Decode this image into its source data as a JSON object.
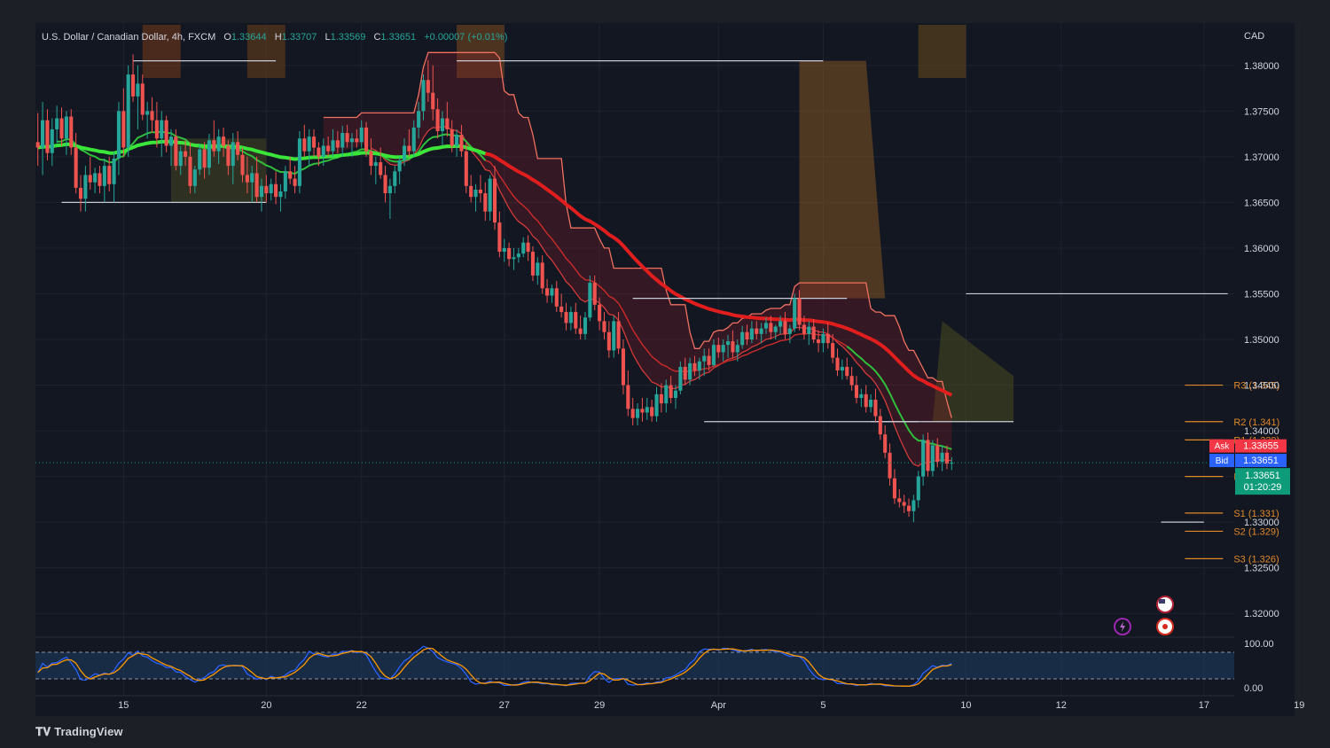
{
  "header": {
    "symbol": "U.S. Dollar / Canadian Dollar, 4h, FXCM",
    "o_label": "O",
    "o_value": "1.33644",
    "h_label": "H",
    "h_value": "1.33707",
    "l_label": "L",
    "l_value": "1.33569",
    "c_label": "C",
    "c_value": "1.33651",
    "change": "+0.00007 (+0.01%)"
  },
  "currency": "CAD",
  "brand": "TradingView",
  "colors": {
    "background": "#1c1f26",
    "up": "#26a69a",
    "down": "#ef5350",
    "ma_green": "#39e639",
    "ma_red": "#e01e1e",
    "pivot": "#e0882a",
    "ask": "#f23645",
    "bid": "#2962ff",
    "last": "#0e9b7a"
  },
  "chart_data": {
    "type": "candlestick",
    "y_range": [
      1.3175,
      1.3825
    ],
    "y_ticks": [
      "1.38000",
      "1.37500",
      "1.37000",
      "1.36500",
      "1.36000",
      "1.35500",
      "1.35000",
      "1.34500",
      "1.34000",
      "1.33500",
      "1.33000",
      "1.32500",
      "1.32000"
    ],
    "y_tick_values": [
      1.38,
      1.375,
      1.37,
      1.365,
      1.36,
      1.355,
      1.35,
      1.345,
      1.34,
      1.335,
      1.33,
      1.325,
      1.32
    ],
    "x_ticks": [
      "15",
      "20",
      "22",
      "27",
      "29",
      "Apr",
      "5",
      "10",
      "12",
      "17",
      "19"
    ],
    "x_tick_index": [
      18,
      48,
      68,
      98,
      118,
      143,
      165,
      195,
      215,
      245,
      265
    ],
    "candles_total": 250,
    "candles": [
      [
        1.3716,
        1.3748,
        1.369,
        1.371
      ],
      [
        1.371,
        1.376,
        1.368,
        1.374
      ],
      [
        1.374,
        1.3752,
        1.3696,
        1.3704
      ],
      [
        1.3704,
        1.3742,
        1.369,
        1.373
      ],
      [
        1.373,
        1.3756,
        1.3715,
        1.3742
      ],
      [
        1.3742,
        1.3754,
        1.3712,
        1.372
      ],
      [
        1.372,
        1.375,
        1.3702,
        1.3744
      ],
      [
        1.3744,
        1.3752,
        1.3702,
        1.371
      ],
      [
        1.371,
        1.3726,
        1.366,
        1.3666
      ],
      [
        1.3666,
        1.368,
        1.364,
        1.3654
      ],
      [
        1.3654,
        1.369,
        1.364,
        1.368
      ],
      [
        1.368,
        1.37,
        1.3664,
        1.3672
      ],
      [
        1.3672,
        1.3688,
        1.366,
        1.3682
      ],
      [
        1.3682,
        1.369,
        1.366,
        1.3668
      ],
      [
        1.3668,
        1.3698,
        1.365,
        1.369
      ],
      [
        1.369,
        1.37,
        1.3662,
        1.367
      ],
      [
        1.367,
        1.3705,
        1.365,
        1.3698
      ],
      [
        1.3698,
        1.376,
        1.368,
        1.375
      ],
      [
        1.375,
        1.3775,
        1.37,
        1.371
      ],
      [
        1.371,
        1.38,
        1.37,
        1.379
      ],
      [
        1.379,
        1.3812,
        1.376,
        1.3766
      ],
      [
        1.3766,
        1.38,
        1.373,
        1.378
      ],
      [
        1.378,
        1.379,
        1.374,
        1.3746
      ],
      [
        1.3746,
        1.376,
        1.372,
        1.375
      ],
      [
        1.375,
        1.3765,
        1.3726,
        1.374
      ],
      [
        1.374,
        1.376,
        1.371,
        1.372
      ],
      [
        1.372,
        1.375,
        1.37,
        1.374
      ],
      [
        1.374,
        1.3745,
        1.3705,
        1.3712
      ],
      [
        1.3712,
        1.373,
        1.369,
        1.3722
      ],
      [
        1.3722,
        1.373,
        1.3685,
        1.369
      ],
      [
        1.369,
        1.3712,
        1.368,
        1.3706
      ],
      [
        1.3706,
        1.3718,
        1.369,
        1.37
      ],
      [
        1.37,
        1.3716,
        1.366,
        1.3668
      ],
      [
        1.3668,
        1.369,
        1.366,
        1.3686
      ],
      [
        1.3686,
        1.3714,
        1.368,
        1.3708
      ],
      [
        1.3708,
        1.3716,
        1.3676,
        1.3688
      ],
      [
        1.3688,
        1.3725,
        1.368,
        1.3718
      ],
      [
        1.3718,
        1.374,
        1.37,
        1.3706
      ],
      [
        1.3706,
        1.373,
        1.3692,
        1.3722
      ],
      [
        1.3722,
        1.3732,
        1.37,
        1.3712
      ],
      [
        1.3712,
        1.3718,
        1.368,
        1.369
      ],
      [
        1.369,
        1.3726,
        1.367,
        1.3716
      ],
      [
        1.3716,
        1.3728,
        1.3696,
        1.3702
      ],
      [
        1.3702,
        1.371,
        1.3672,
        1.368
      ],
      [
        1.368,
        1.37,
        1.366,
        1.3672
      ],
      [
        1.3672,
        1.369,
        1.365,
        1.3682
      ],
      [
        1.3682,
        1.37,
        1.365,
        1.3656
      ],
      [
        1.3656,
        1.3676,
        1.364,
        1.3668
      ],
      [
        1.3668,
        1.368,
        1.365,
        1.366
      ],
      [
        1.366,
        1.3676,
        1.3652,
        1.367
      ],
      [
        1.367,
        1.3684,
        1.3648,
        1.3656
      ],
      [
        1.3656,
        1.367,
        1.364,
        1.3662
      ],
      [
        1.3662,
        1.369,
        1.3654,
        1.3684
      ],
      [
        1.3684,
        1.37,
        1.367,
        1.3676
      ],
      [
        1.3676,
        1.369,
        1.366,
        1.3668
      ],
      [
        1.3668,
        1.3728,
        1.366,
        1.372
      ],
      [
        1.372,
        1.3735,
        1.37,
        1.3706
      ],
      [
        1.3706,
        1.373,
        1.369,
        1.3722
      ],
      [
        1.3722,
        1.373,
        1.37,
        1.371
      ],
      [
        1.371,
        1.3716,
        1.369,
        1.37
      ],
      [
        1.37,
        1.372,
        1.369,
        1.3712
      ],
      [
        1.3712,
        1.3722,
        1.37,
        1.3706
      ],
      [
        1.3706,
        1.373,
        1.37,
        1.3718
      ],
      [
        1.3718,
        1.3728,
        1.3704,
        1.371
      ],
      [
        1.371,
        1.3734,
        1.37,
        1.3726
      ],
      [
        1.3726,
        1.3735,
        1.371,
        1.3716
      ],
      [
        1.3716,
        1.3726,
        1.37,
        1.372
      ],
      [
        1.372,
        1.373,
        1.371,
        1.3716
      ],
      [
        1.3716,
        1.374,
        1.371,
        1.3732
      ],
      [
        1.3732,
        1.3738,
        1.37,
        1.3706
      ],
      [
        1.3706,
        1.372,
        1.368,
        1.369
      ],
      [
        1.369,
        1.37,
        1.367,
        1.3694
      ],
      [
        1.3694,
        1.371,
        1.3676,
        1.368
      ],
      [
        1.368,
        1.369,
        1.365,
        1.366
      ],
      [
        1.366,
        1.3676,
        1.3632,
        1.3668
      ],
      [
        1.3668,
        1.369,
        1.366,
        1.3684
      ],
      [
        1.3684,
        1.37,
        1.367,
        1.3696
      ],
      [
        1.3696,
        1.372,
        1.369,
        1.3712
      ],
      [
        1.3712,
        1.373,
        1.37,
        1.3706
      ],
      [
        1.3706,
        1.374,
        1.37,
        1.3732
      ],
      [
        1.3732,
        1.376,
        1.372,
        1.375
      ],
      [
        1.375,
        1.379,
        1.374,
        1.3784
      ],
      [
        1.3784,
        1.3806,
        1.376,
        1.377
      ],
      [
        1.377,
        1.38,
        1.374,
        1.3752
      ],
      [
        1.3752,
        1.3764,
        1.372,
        1.3728
      ],
      [
        1.3728,
        1.375,
        1.3712,
        1.3742
      ],
      [
        1.3742,
        1.376,
        1.3722,
        1.373
      ],
      [
        1.373,
        1.374,
        1.3705,
        1.3712
      ],
      [
        1.3712,
        1.373,
        1.37,
        1.3724
      ],
      [
        1.3724,
        1.3735,
        1.37,
        1.3706
      ],
      [
        1.3706,
        1.3716,
        1.366,
        1.3668
      ],
      [
        1.3668,
        1.368,
        1.365,
        1.3656
      ],
      [
        1.3656,
        1.367,
        1.364,
        1.3664
      ],
      [
        1.3664,
        1.368,
        1.365,
        1.366
      ],
      [
        1.366,
        1.3672,
        1.363,
        1.364
      ],
      [
        1.364,
        1.368,
        1.363,
        1.3676
      ],
      [
        1.3676,
        1.369,
        1.362,
        1.3628
      ],
      [
        1.3628,
        1.364,
        1.359,
        1.3596
      ],
      [
        1.3596,
        1.361,
        1.3585,
        1.36
      ],
      [
        1.36,
        1.3606,
        1.358,
        1.3588
      ],
      [
        1.3588,
        1.36,
        1.3576,
        1.359
      ],
      [
        1.359,
        1.36,
        1.3584,
        1.3594
      ],
      [
        1.3594,
        1.3612,
        1.359,
        1.3606
      ],
      [
        1.3606,
        1.3614,
        1.3586,
        1.3596
      ],
      [
        1.3596,
        1.3602,
        1.3564,
        1.357
      ],
      [
        1.357,
        1.359,
        1.356,
        1.3584
      ],
      [
        1.3584,
        1.3592,
        1.355,
        1.3556
      ],
      [
        1.3556,
        1.3566,
        1.354,
        1.3548
      ],
      [
        1.3548,
        1.356,
        1.354,
        1.3556
      ],
      [
        1.3556,
        1.3564,
        1.353,
        1.3536
      ],
      [
        1.3536,
        1.355,
        1.3524,
        1.353
      ],
      [
        1.353,
        1.354,
        1.351,
        1.3518
      ],
      [
        1.3518,
        1.3536,
        1.351,
        1.353
      ],
      [
        1.353,
        1.354,
        1.3506,
        1.3512
      ],
      [
        1.3512,
        1.3526,
        1.35,
        1.3506
      ],
      [
        1.3506,
        1.353,
        1.35,
        1.3524
      ],
      [
        1.3524,
        1.357,
        1.352,
        1.3562
      ],
      [
        1.3562,
        1.357,
        1.3532,
        1.3538
      ],
      [
        1.3538,
        1.3546,
        1.351,
        1.352
      ],
      [
        1.352,
        1.353,
        1.35,
        1.3508
      ],
      [
        1.3508,
        1.352,
        1.348,
        1.3488
      ],
      [
        1.3488,
        1.3526,
        1.348,
        1.352
      ],
      [
        1.352,
        1.353,
        1.3484,
        1.349
      ],
      [
        1.349,
        1.35,
        1.344,
        1.345
      ],
      [
        1.345,
        1.3466,
        1.3416,
        1.3424
      ],
      [
        1.3424,
        1.3436,
        1.3406,
        1.3414
      ],
      [
        1.3414,
        1.343,
        1.3406,
        1.3424
      ],
      [
        1.3424,
        1.3436,
        1.341,
        1.342
      ],
      [
        1.342,
        1.3436,
        1.3412,
        1.3426
      ],
      [
        1.3426,
        1.3434,
        1.341,
        1.3416
      ],
      [
        1.3416,
        1.3448,
        1.341,
        1.344
      ],
      [
        1.344,
        1.3452,
        1.342,
        1.343
      ],
      [
        1.343,
        1.3456,
        1.342,
        1.345
      ],
      [
        1.345,
        1.346,
        1.343,
        1.3436
      ],
      [
        1.3436,
        1.345,
        1.3424,
        1.3444
      ],
      [
        1.3444,
        1.3476,
        1.344,
        1.347
      ],
      [
        1.347,
        1.348,
        1.345,
        1.3456
      ],
      [
        1.3456,
        1.348,
        1.345,
        1.3474
      ],
      [
        1.3474,
        1.3482,
        1.346,
        1.3466
      ],
      [
        1.3466,
        1.348,
        1.3456,
        1.3476
      ],
      [
        1.3476,
        1.349,
        1.346,
        1.3482
      ],
      [
        1.3482,
        1.349,
        1.3466,
        1.3472
      ],
      [
        1.3472,
        1.35,
        1.347,
        1.3494
      ],
      [
        1.3494,
        1.3502,
        1.348,
        1.3486
      ],
      [
        1.3486,
        1.35,
        1.3476,
        1.3494
      ],
      [
        1.3494,
        1.3505,
        1.348,
        1.3498
      ],
      [
        1.3498,
        1.351,
        1.348,
        1.3486
      ],
      [
        1.3486,
        1.35,
        1.3476,
        1.3494
      ],
      [
        1.3494,
        1.3515,
        1.349,
        1.3508
      ],
      [
        1.3508,
        1.3516,
        1.3494,
        1.35
      ],
      [
        1.35,
        1.352,
        1.3496,
        1.3512
      ],
      [
        1.3512,
        1.352,
        1.35,
        1.3506
      ],
      [
        1.3506,
        1.3518,
        1.3496,
        1.3512
      ],
      [
        1.3512,
        1.3524,
        1.3506,
        1.3518
      ],
      [
        1.3518,
        1.3526,
        1.35,
        1.3508
      ],
      [
        1.3508,
        1.3516,
        1.35,
        1.3514
      ],
      [
        1.3514,
        1.3526,
        1.3506,
        1.352
      ],
      [
        1.352,
        1.353,
        1.35,
        1.3506
      ],
      [
        1.3506,
        1.3516,
        1.3496,
        1.3512
      ],
      [
        1.3512,
        1.355,
        1.3508,
        1.3545
      ],
      [
        1.3545,
        1.3554,
        1.351,
        1.3516
      ],
      [
        1.3516,
        1.3526,
        1.35,
        1.3506
      ],
      [
        1.3506,
        1.352,
        1.3494,
        1.3514
      ],
      [
        1.3514,
        1.3522,
        1.3496,
        1.35
      ],
      [
        1.35,
        1.351,
        1.3486,
        1.3496
      ],
      [
        1.3496,
        1.3512,
        1.3486,
        1.3506
      ],
      [
        1.3506,
        1.3518,
        1.349,
        1.3496
      ],
      [
        1.3496,
        1.3506,
        1.3474,
        1.348
      ],
      [
        1.348,
        1.349,
        1.346,
        1.3466
      ],
      [
        1.3466,
        1.3478,
        1.3456,
        1.347
      ],
      [
        1.347,
        1.348,
        1.3456,
        1.346
      ],
      [
        1.346,
        1.347,
        1.3444,
        1.345
      ],
      [
        1.345,
        1.346,
        1.343,
        1.3436
      ],
      [
        1.3436,
        1.3446,
        1.3426,
        1.344
      ],
      [
        1.344,
        1.345,
        1.342,
        1.3426
      ],
      [
        1.3426,
        1.344,
        1.342,
        1.3434
      ],
      [
        1.3434,
        1.3446,
        1.341,
        1.3416
      ],
      [
        1.3416,
        1.3424,
        1.339,
        1.3396
      ],
      [
        1.3396,
        1.3406,
        1.337,
        1.3376
      ],
      [
        1.3376,
        1.3386,
        1.334,
        1.3348
      ],
      [
        1.3348,
        1.3358,
        1.332,
        1.3326
      ],
      [
        1.3326,
        1.3336,
        1.3316,
        1.3322
      ],
      [
        1.3322,
        1.333,
        1.331,
        1.3318
      ],
      [
        1.3318,
        1.3326,
        1.3306,
        1.3312
      ],
      [
        1.3312,
        1.333,
        1.33,
        1.3324
      ],
      [
        1.3324,
        1.3356,
        1.3316,
        1.335
      ],
      [
        1.335,
        1.3396,
        1.334,
        1.339
      ],
      [
        1.339,
        1.3398,
        1.335,
        1.3356
      ],
      [
        1.3356,
        1.339,
        1.335,
        1.3384
      ],
      [
        1.3384,
        1.3392,
        1.336,
        1.3366
      ],
      [
        1.3366,
        1.3384,
        1.3356,
        1.3376
      ],
      [
        1.3376,
        1.3384,
        1.3358,
        1.3364
      ],
      [
        1.3364,
        1.3371,
        1.3357,
        1.3365
      ]
    ],
    "pivots": [
      {
        "label": "R3 (1.345)",
        "value": 1.345
      },
      {
        "label": "R2 (1.341)",
        "value": 1.341
      },
      {
        "label": "R1 (1.339)",
        "value": 1.339
      },
      {
        "label": "P (1.335)",
        "value": 1.335
      },
      {
        "label": "S1 (1.331)",
        "value": 1.331
      },
      {
        "label": "S2 (1.329)",
        "value": 1.329
      },
      {
        "label": "S3 (1.326)",
        "value": 1.326
      }
    ],
    "price_tags": {
      "ask_label": "Ask",
      "ask_value": "1.33655",
      "bid_label": "Bid",
      "bid_value": "1.33651",
      "last_value": "1.33651",
      "countdown": "01:20:29"
    },
    "oscillator": {
      "y_ticks": [
        "100.00",
        "0.00"
      ],
      "range": [
        0,
        100
      ],
      "upper_band": 80,
      "lower_band": 20
    }
  }
}
